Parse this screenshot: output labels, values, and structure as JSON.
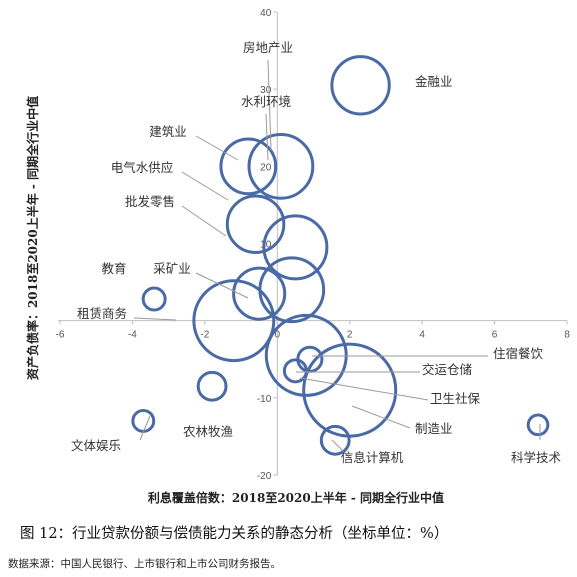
{
  "chart_data": {
    "type": "scatter",
    "subtype": "bubble",
    "xlabel": "利息覆盖倍数：2018至2020上半年 - 同期全行业中值",
    "ylabel": "资产负债率：2018至2020上半年 - 同期全行业中值",
    "xlim": [
      -6,
      8
    ],
    "ylim": [
      -20,
      40
    ],
    "x_ticks": [
      "-6",
      "-4",
      "-2",
      "0",
      "2",
      "4",
      "6",
      "8"
    ],
    "y_ticks": [
      "-20",
      "-10",
      "10",
      "20",
      "30",
      "40"
    ],
    "bubble_color": "#4a6aa5",
    "points": [
      {
        "name": "金融业",
        "x": 2.3,
        "y": 30.5,
        "size": 6.8
      },
      {
        "name": "房地产业",
        "x": -0.8,
        "y": 20.0,
        "size": 6.2
      },
      {
        "name": "水利环境",
        "x": 0.1,
        "y": 20.0,
        "size": 8.4
      },
      {
        "name": "建筑业",
        "x": -0.6,
        "y": 12.5,
        "size": 6.6
      },
      {
        "name": "电气水供应",
        "x": 0.5,
        "y": 9.5,
        "size": 8.2
      },
      {
        "name": "批发零售",
        "x": -0.5,
        "y": 3.5,
        "size": 5.4
      },
      {
        "name": "采矿业",
        "x": 0.4,
        "y": 4.0,
        "size": 8.4
      },
      {
        "name": "教育",
        "x": -3.4,
        "y": 2.8,
        "size": 1.0
      },
      {
        "name": "租赁商务",
        "x": -1.2,
        "y": 0.0,
        "size": 13.2
      },
      {
        "name": "住宿餐饮",
        "x": 0.8,
        "y": -4.5,
        "size": 13.2
      },
      {
        "name": "交运仓储",
        "x": 0.9,
        "y": -5.0,
        "size": 1.2
      },
      {
        "name": "卫生社保",
        "x": 0.5,
        "y": -6.5,
        "size": 1.0
      },
      {
        "name": "制造业",
        "x": 2.0,
        "y": -9.0,
        "size": 17.5
      },
      {
        "name": "农林牧渔",
        "x": -1.8,
        "y": -8.5,
        "size": 1.6
      },
      {
        "name": "信息计算机",
        "x": 1.6,
        "y": -15.5,
        "size": 1.6
      },
      {
        "name": "文体娱乐",
        "x": -3.7,
        "y": -13.0,
        "size": 0.9
      },
      {
        "name": "科学技术",
        "x": 7.2,
        "y": -13.5,
        "size": 0.8
      }
    ]
  },
  "caption": "图 12：行业贷款份额与偿债能力关系的静态分析（坐标单位：%）",
  "source": "数据来源：中国人民银行、上市银行和上市公司财务报告。"
}
